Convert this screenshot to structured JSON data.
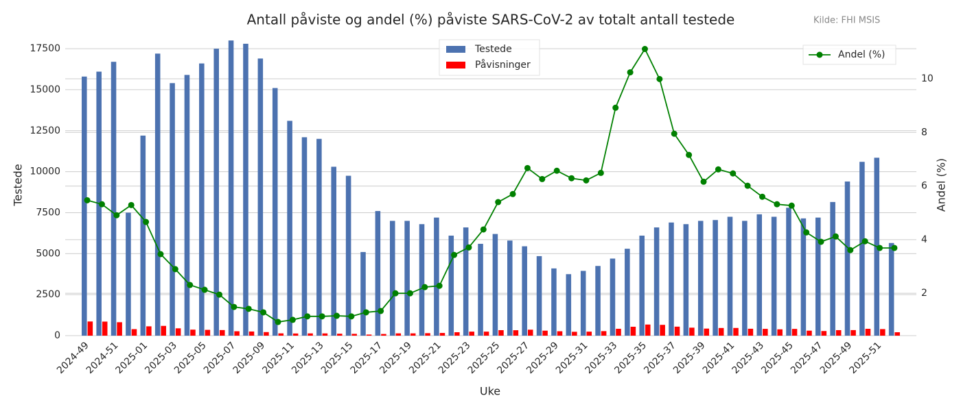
{
  "chart_data": {
    "type": "bar_line",
    "title": "Antall påviste og andel (%) påviste SARS-CoV-2 av totalt antall testede",
    "source": "Kilde: FHI MSIS",
    "xlabel": "Uke",
    "ylabel": "Testede",
    "y2label": "Andel (%)",
    "categories": [
      "2024-49",
      null,
      "2024-51",
      null,
      "2025-01",
      null,
      "2025-03",
      null,
      "2025-05",
      null,
      "2025-07",
      null,
      "2025-09",
      null,
      "2025-11",
      null,
      "2025-13",
      null,
      "2025-15",
      null,
      "2025-17",
      null,
      "2025-19",
      null,
      "2025-21",
      null,
      "2025-23",
      null,
      "2025-25",
      null,
      "2025-27",
      null,
      "2025-29",
      null,
      "2025-31",
      null,
      "2025-33",
      null,
      "2025-35",
      null,
      "2025-37",
      null,
      "2025-39",
      null,
      "2025-41",
      null,
      "2025-43",
      null,
      "2025-45",
      null,
      "2025-47",
      null,
      "2025-49",
      null,
      "2025-51",
      null
    ],
    "series": [
      {
        "name": "Testede",
        "color": "#4c72b0",
        "kind": "bar",
        "values": [
          15800,
          16100,
          16700,
          7500,
          12200,
          17200,
          15400,
          15900,
          16600,
          17500,
          18000,
          17800,
          16900,
          15100,
          13100,
          12100,
          12000,
          10300,
          9750,
          5100,
          7600,
          7000,
          7000,
          6800,
          7200,
          6100,
          6600,
          5600,
          6200,
          5800,
          5450,
          4850,
          4100,
          3750,
          3950,
          4250,
          4700,
          5300,
          6100,
          6600,
          6900,
          6800,
          7000,
          7050,
          7250,
          7000,
          7400,
          7250,
          7800,
          7150,
          7200,
          8150,
          9400,
          10600,
          10850,
          5650
        ]
      },
      {
        "name": "Påvisninger",
        "color": "#ff0000",
        "kind": "bar",
        "values": [
          864,
          857,
          820,
          397,
          569,
          595,
          447,
          367,
          354,
          341,
          268,
          253,
          218,
          140,
          132,
          138,
          137,
          119,
          111,
          66,
          102,
          140,
          140,
          152,
          164,
          209,
          245,
          245,
          335,
          331,
          364,
          304,
          269,
          236,
          245,
          276,
          419,
          543,
          678,
          659,
          549,
          487,
          431,
          467,
          469,
          421,
          414,
          386,
          411,
          305,
          282,
          336,
          339,
          418,
          400,
          208
        ]
      },
      {
        "name": "Andel (%)",
        "color": "#008000",
        "kind": "line",
        "axis": "y2",
        "values": [
          5.47,
          5.32,
          4.91,
          5.29,
          4.66,
          3.46,
          2.9,
          2.31,
          2.13,
          1.95,
          1.49,
          1.42,
          1.29,
          0.93,
          1.01,
          1.14,
          1.14,
          1.16,
          1.14,
          1.29,
          1.34,
          2.0,
          2.0,
          2.23,
          2.28,
          3.43,
          3.71,
          4.38,
          5.4,
          5.7,
          6.67,
          6.26,
          6.57,
          6.29,
          6.21,
          6.49,
          8.92,
          10.24,
          11.11,
          9.99,
          7.95,
          7.16,
          6.16,
          6.62,
          6.47,
          6.01,
          5.6,
          5.32,
          5.27,
          4.27,
          3.92,
          4.12,
          3.61,
          3.94,
          3.69,
          3.69
        ]
      }
    ],
    "ylim": [
      0,
      18380
    ],
    "yticks": [
      0,
      2500,
      5000,
      7500,
      10000,
      12500,
      15000,
      17500
    ],
    "y2lim": [
      0.42,
      11.66
    ],
    "y2ticks": [
      2,
      4,
      6,
      8,
      10
    ],
    "grid": true
  }
}
